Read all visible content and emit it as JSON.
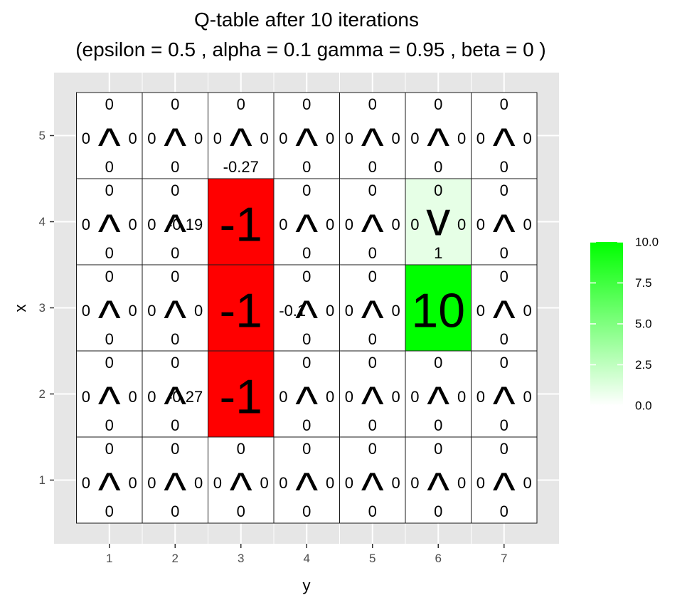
{
  "chart_data": {
    "type": "heatmap",
    "title": [
      "Q-table after  10  iterations",
      "(epsilon =  0.5 , alpha =  0.1 gamma =  0.95 , beta =  0 )"
    ],
    "xlabel": "y",
    "ylabel": "x",
    "x_ticks": [
      "1",
      "2",
      "3",
      "4",
      "5",
      "6",
      "7"
    ],
    "y_ticks": [
      "1",
      "2",
      "3",
      "4",
      "5"
    ],
    "grid": true,
    "color_scale": {
      "low": "#ffffff",
      "high": "#00ff00",
      "min": 0,
      "max": 10
    },
    "legend": {
      "placement": "right",
      "ticks": [
        "0.0",
        "2.5",
        "5.0",
        "7.5",
        "10.0"
      ]
    },
    "cells": [
      {
        "x": 5,
        "y": 1,
        "top": "0",
        "left": "0",
        "right": "0",
        "bottom": "0",
        "symbol": "^",
        "value": 0
      },
      {
        "x": 5,
        "y": 2,
        "top": "0",
        "left": "0",
        "right": "0",
        "bottom": "0",
        "symbol": "^",
        "value": 0
      },
      {
        "x": 5,
        "y": 3,
        "top": "0",
        "left": "0",
        "right": "0",
        "bottom": "-0.27",
        "symbol": "^",
        "value": 0
      },
      {
        "x": 5,
        "y": 4,
        "top": "0",
        "left": "0",
        "right": "0",
        "bottom": "0",
        "symbol": "^",
        "value": 0
      },
      {
        "x": 5,
        "y": 5,
        "top": "0",
        "left": "0",
        "right": "0",
        "bottom": "0",
        "symbol": "^",
        "value": 0
      },
      {
        "x": 5,
        "y": 6,
        "top": "0",
        "left": "0",
        "right": "0",
        "bottom": "0",
        "symbol": "^",
        "value": 0
      },
      {
        "x": 5,
        "y": 7,
        "top": "0",
        "left": "0",
        "right": "0",
        "bottom": "0",
        "symbol": "^",
        "value": 0
      },
      {
        "x": 4,
        "y": 1,
        "top": "0",
        "left": "0",
        "right": "0",
        "bottom": "0",
        "symbol": "^",
        "value": 0
      },
      {
        "x": 4,
        "y": 2,
        "top": "0",
        "left": "0",
        "right": "-0.19",
        "bottom": "0",
        "symbol": "^",
        "value": 0
      },
      {
        "x": 4,
        "y": 3,
        "top": "",
        "left": "",
        "right": "",
        "bottom": "",
        "symbol": "-1",
        "value": 0,
        "fill": "#ff0000"
      },
      {
        "x": 4,
        "y": 4,
        "top": "0",
        "left": "0",
        "right": "0",
        "bottom": "0",
        "symbol": "^",
        "value": 0
      },
      {
        "x": 4,
        "y": 5,
        "top": "0",
        "left": "0",
        "right": "0",
        "bottom": "0",
        "symbol": "^",
        "value": 0
      },
      {
        "x": 4,
        "y": 6,
        "top": "0",
        "left": "0",
        "right": "0",
        "bottom": "1",
        "symbol": "v",
        "value": 1
      },
      {
        "x": 4,
        "y": 7,
        "top": "0",
        "left": "0",
        "right": "0",
        "bottom": "0",
        "symbol": "^",
        "value": 0
      },
      {
        "x": 3,
        "y": 1,
        "top": "0",
        "left": "0",
        "right": "0",
        "bottom": "0",
        "symbol": "^",
        "value": 0
      },
      {
        "x": 3,
        "y": 2,
        "top": "0",
        "left": "0",
        "right": "0",
        "bottom": "0",
        "symbol": "^",
        "value": 0
      },
      {
        "x": 3,
        "y": 3,
        "top": "",
        "left": "",
        "right": "",
        "bottom": "",
        "symbol": "-1",
        "value": 0,
        "fill": "#ff0000"
      },
      {
        "x": 3,
        "y": 4,
        "top": "0",
        "left": "-0.1",
        "right": "0",
        "bottom": "0",
        "symbol": "^",
        "value": 0
      },
      {
        "x": 3,
        "y": 5,
        "top": "0",
        "left": "0",
        "right": "0",
        "bottom": "0",
        "symbol": "^",
        "value": 0
      },
      {
        "x": 3,
        "y": 6,
        "top": "",
        "left": "",
        "right": "",
        "bottom": "",
        "symbol": "10",
        "value": 10
      },
      {
        "x": 3,
        "y": 7,
        "top": "0",
        "left": "0",
        "right": "0",
        "bottom": "0",
        "symbol": "^",
        "value": 0
      },
      {
        "x": 2,
        "y": 1,
        "top": "0",
        "left": "0",
        "right": "0",
        "bottom": "0",
        "symbol": "^",
        "value": 0
      },
      {
        "x": 2,
        "y": 2,
        "top": "0",
        "left": "0",
        "right": "-0.27",
        "bottom": "0",
        "symbol": "^",
        "value": 0
      },
      {
        "x": 2,
        "y": 3,
        "top": "",
        "left": "",
        "right": "",
        "bottom": "",
        "symbol": "-1",
        "value": 0,
        "fill": "#ff0000"
      },
      {
        "x": 2,
        "y": 4,
        "top": "0",
        "left": "0",
        "right": "0",
        "bottom": "0",
        "symbol": "^",
        "value": 0
      },
      {
        "x": 2,
        "y": 5,
        "top": "0",
        "left": "0",
        "right": "0",
        "bottom": "0",
        "symbol": "^",
        "value": 0
      },
      {
        "x": 2,
        "y": 6,
        "top": "0",
        "left": "0",
        "right": "0",
        "bottom": "0",
        "symbol": "^",
        "value": 0
      },
      {
        "x": 2,
        "y": 7,
        "top": "0",
        "left": "0",
        "right": "0",
        "bottom": "0",
        "symbol": "^",
        "value": 0
      },
      {
        "x": 1,
        "y": 1,
        "top": "0",
        "left": "0",
        "right": "0",
        "bottom": "0",
        "symbol": "^",
        "value": 0
      },
      {
        "x": 1,
        "y": 2,
        "top": "0",
        "left": "0",
        "right": "0",
        "bottom": "0",
        "symbol": "^",
        "value": 0
      },
      {
        "x": 1,
        "y": 3,
        "top": "0",
        "left": "0",
        "right": "0",
        "bottom": "0",
        "symbol": "^",
        "value": 0
      },
      {
        "x": 1,
        "y": 4,
        "top": "0",
        "left": "0",
        "right": "0",
        "bottom": "0",
        "symbol": "^",
        "value": 0
      },
      {
        "x": 1,
        "y": 5,
        "top": "0",
        "left": "0",
        "right": "0",
        "bottom": "0",
        "symbol": "^",
        "value": 0
      },
      {
        "x": 1,
        "y": 6,
        "top": "0",
        "left": "0",
        "right": "0",
        "bottom": "0",
        "symbol": "^",
        "value": 0
      },
      {
        "x": 1,
        "y": 7,
        "top": "0",
        "left": "0",
        "right": "0",
        "bottom": "0",
        "symbol": "^",
        "value": 0
      }
    ]
  }
}
